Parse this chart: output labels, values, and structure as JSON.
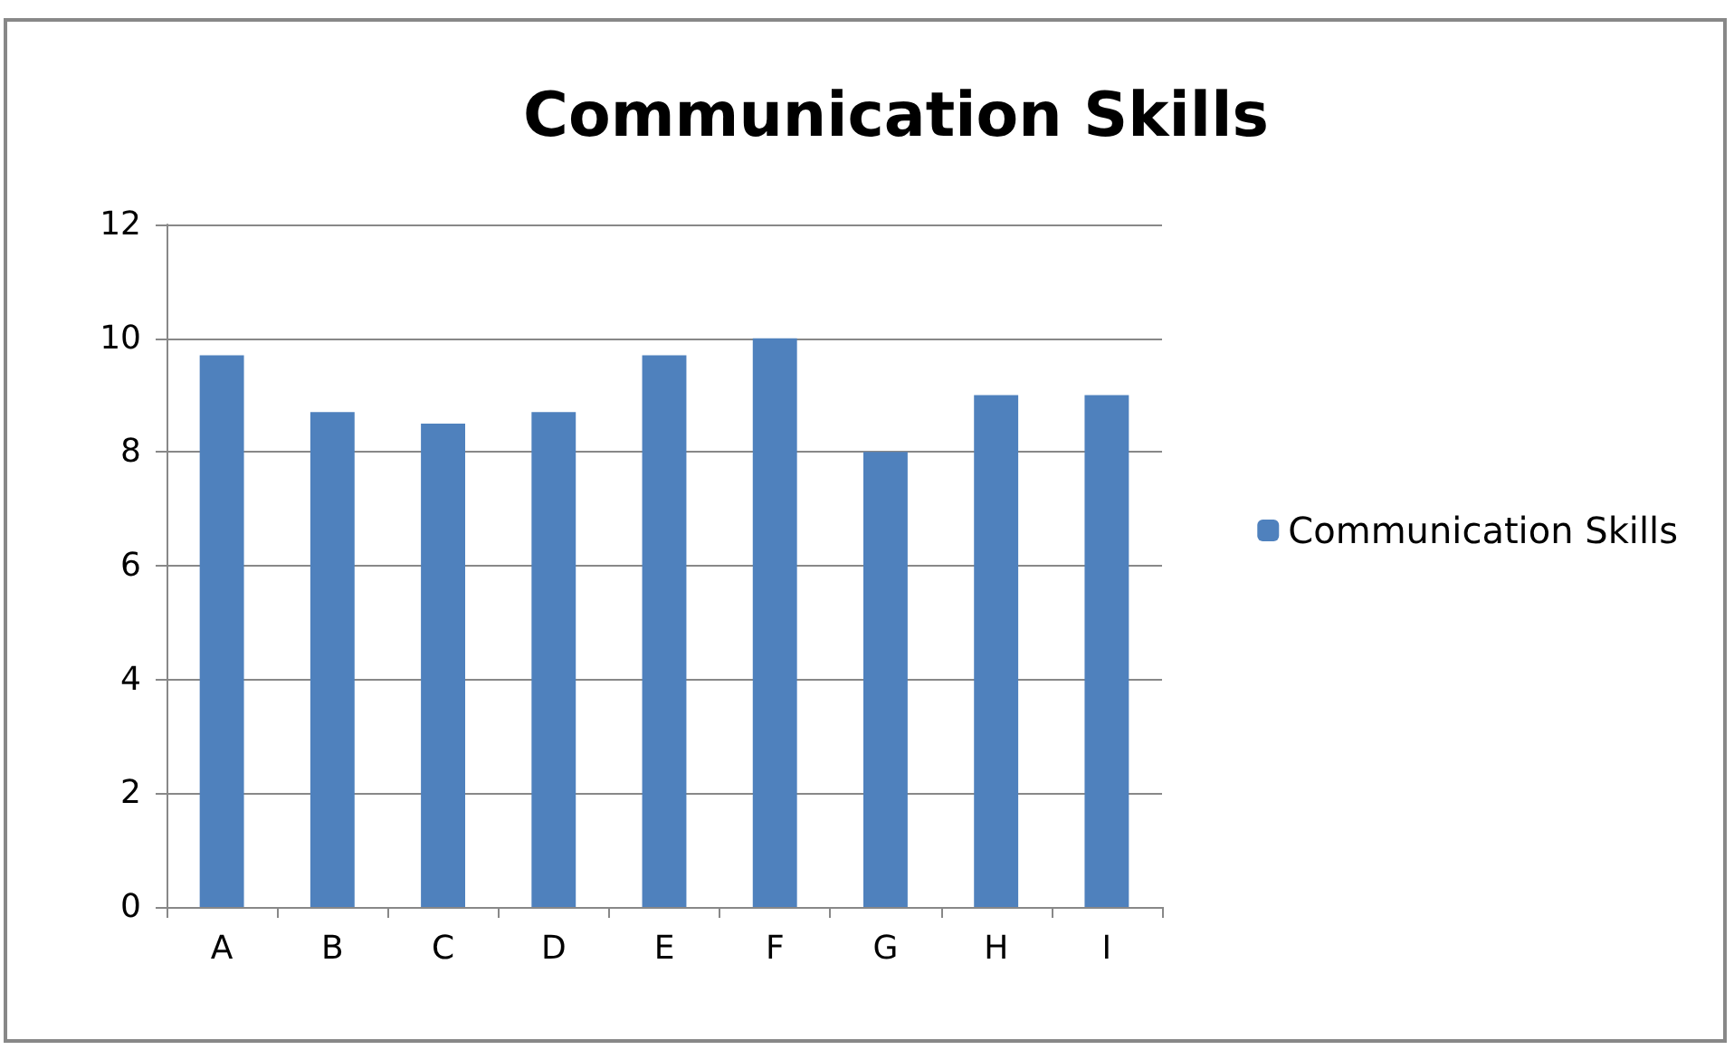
{
  "chart_data": {
    "type": "bar",
    "title": "Communication Skills",
    "categories": [
      "A",
      "B",
      "C",
      "D",
      "E",
      "F",
      "G",
      "H",
      "I"
    ],
    "series": [
      {
        "name": "Communication Skills",
        "color": "#4f81bd",
        "values": [
          9.7,
          8.7,
          8.5,
          8.7,
          9.7,
          10,
          8,
          9,
          9
        ]
      }
    ],
    "ylim": [
      0,
      12
    ],
    "yticks": [
      0,
      2,
      4,
      6,
      8,
      10,
      12
    ],
    "grid": "y",
    "legend": "right"
  }
}
